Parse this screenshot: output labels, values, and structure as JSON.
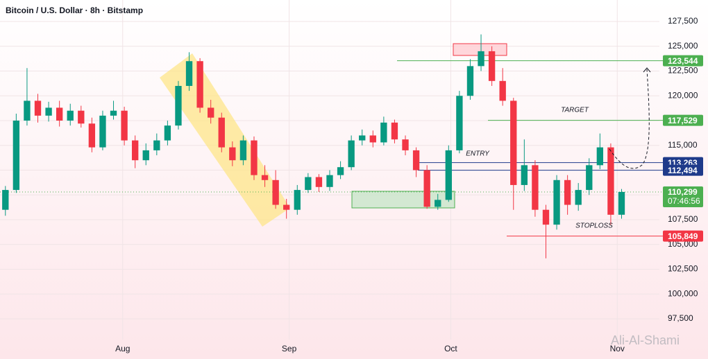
{
  "chart_data": {
    "type": "candlestick",
    "title": "Bitcoin / U.S. Dollar · 8h · Bitstamp",
    "watermark": "Ali-Al-Shami",
    "up_color": "#089981",
    "down_color": "#f23645",
    "candles": [
      [
        108500,
        110900,
        107900,
        110500
      ],
      [
        110500,
        118200,
        110200,
        117500
      ],
      [
        117500,
        122800,
        117000,
        119500
      ],
      [
        119500,
        120200,
        117300,
        118000
      ],
      [
        118000,
        119400,
        117400,
        118800
      ],
      [
        118800,
        119500,
        116900,
        117500
      ],
      [
        117500,
        119200,
        117000,
        118500
      ],
      [
        118500,
        119000,
        116800,
        117200
      ],
      [
        117200,
        117800,
        114300,
        114800
      ],
      [
        114800,
        118500,
        114500,
        118000
      ],
      [
        118000,
        119500,
        117600,
        118500
      ],
      [
        118500,
        118900,
        115000,
        115500
      ],
      [
        115500,
        116000,
        112700,
        113500
      ],
      [
        113500,
        115200,
        113000,
        114500
      ],
      [
        114500,
        116200,
        114000,
        115500
      ],
      [
        115500,
        117500,
        115000,
        117000
      ],
      [
        117000,
        121500,
        116600,
        121000
      ],
      [
        121000,
        124400,
        120500,
        123500
      ],
      [
        123500,
        123800,
        118300,
        118800
      ],
      [
        118800,
        119600,
        117200,
        117800
      ],
      [
        117800,
        118300,
        114300,
        114800
      ],
      [
        114800,
        115400,
        112900,
        113500
      ],
      [
        113500,
        116000,
        113000,
        115500
      ],
      [
        115500,
        115900,
        111500,
        112000
      ],
      [
        112000,
        113000,
        110800,
        111500
      ],
      [
        111500,
        112500,
        108600,
        109000
      ],
      [
        109000,
        109600,
        107600,
        108500
      ],
      [
        108500,
        111000,
        108000,
        110500
      ],
      [
        110500,
        112200,
        110200,
        111800
      ],
      [
        111800,
        112100,
        110300,
        110800
      ],
      [
        110800,
        112500,
        110400,
        112000
      ],
      [
        112000,
        113400,
        111600,
        112800
      ],
      [
        112800,
        116000,
        112500,
        115500
      ],
      [
        115500,
        116600,
        115000,
        116000
      ],
      [
        116000,
        116500,
        114800,
        115300
      ],
      [
        115300,
        117900,
        115000,
        117300
      ],
      [
        117300,
        117600,
        115200,
        115600
      ],
      [
        115600,
        116000,
        114000,
        114500
      ],
      [
        114500,
        114800,
        111800,
        112500
      ],
      [
        112500,
        113000,
        108600,
        108800
      ],
      [
        108800,
        110100,
        108500,
        109500
      ],
      [
        109500,
        115000,
        109300,
        114500
      ],
      [
        114500,
        120500,
        114200,
        120000
      ],
      [
        120000,
        123700,
        119600,
        123000
      ],
      [
        123000,
        126200,
        122500,
        124500
      ],
      [
        124500,
        125000,
        121000,
        121500
      ],
      [
        121500,
        122800,
        119000,
        119500
      ],
      [
        119500,
        119800,
        108500,
        111000
      ],
      [
        111000,
        115600,
        110400,
        113000
      ],
      [
        113000,
        113500,
        107800,
        108500
      ],
      [
        108500,
        109000,
        103600,
        107000
      ],
      [
        107000,
        112000,
        106500,
        111500
      ],
      [
        111500,
        112000,
        108000,
        109000
      ],
      [
        109000,
        111200,
        108400,
        110500
      ],
      [
        110500,
        113700,
        110000,
        113000
      ],
      [
        113000,
        116200,
        112600,
        114800
      ],
      [
        114800,
        115200,
        107000,
        108000
      ],
      [
        108000,
        110600,
        107600,
        110300
      ]
    ],
    "xlim": [
      0,
      61
    ],
    "xticks": [
      {
        "value": 11.35,
        "label": "Aug"
      },
      {
        "value": 26.75,
        "label": "Sep"
      },
      {
        "value": 41.7,
        "label": "Oct"
      },
      {
        "value": 57.1,
        "label": "Nov"
      }
    ],
    "ylim": [
      95400,
      129670
    ],
    "yticks": [
      {
        "value": 97500,
        "label": "97,500"
      },
      {
        "value": 100000,
        "label": "100,000"
      },
      {
        "value": 102500,
        "label": "102,500"
      },
      {
        "value": 105000,
        "label": "105,000"
      },
      {
        "value": 107500,
        "label": "107,500"
      },
      {
        "value": 110000,
        "label": "110,000"
      },
      {
        "value": 112500,
        "label": "112,500"
      },
      {
        "value": 115000,
        "label": "115,000"
      },
      {
        "value": 117500,
        "label": "117,500"
      },
      {
        "value": 120000,
        "label": "120,000"
      },
      {
        "value": 122500,
        "label": "122,500"
      },
      {
        "value": 125000,
        "label": "125,000"
      },
      {
        "value": 127500,
        "label": "127,500"
      }
    ],
    "grid": true,
    "levels": [
      {
        "value": 123544,
        "label": "123,544",
        "color": "#4caf50"
      },
      {
        "value": 117529,
        "label": "117,529",
        "color": "#4caf50"
      },
      {
        "value": 113263,
        "label": "113,263",
        "color": "#1e3a8a"
      },
      {
        "value": 112494,
        "label": "112,494",
        "color": "#1e3a8a"
      },
      {
        "value": 105849,
        "label": "105,849",
        "color": "#f23645"
      }
    ],
    "last_price": {
      "value": 110299,
      "label": "110,299",
      "countdown": "07:46:56",
      "color": "#4caf50"
    },
    "annotations": {
      "target": "TARGET",
      "entry": "ENTRY",
      "stoploss": "STOPLOSS"
    }
  }
}
